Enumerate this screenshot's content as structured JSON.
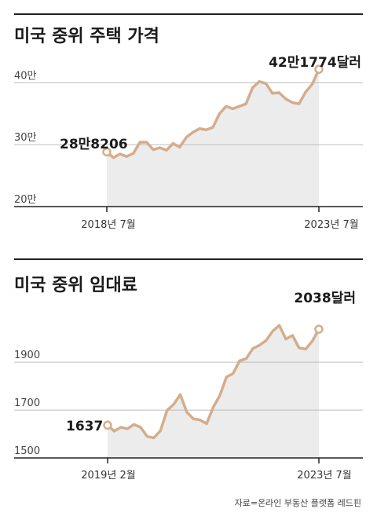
{
  "source": "자료=온라인 부동산 플랫폼 레드핀",
  "colors": {
    "line": "#d4ad8c",
    "area": "#ececec",
    "grid": "#bdbdbd",
    "rule": "#222222",
    "marker_fill": "#ffffff"
  },
  "chart_data": [
    {
      "type": "area",
      "title": "미국 중위 주택 가격",
      "y_tick_labels": [
        "40만",
        "30만",
        "20만"
      ],
      "y_ticks": [
        400000,
        300000,
        200000
      ],
      "ylim": [
        200000,
        450000
      ],
      "x_tick_labels": [
        "2018년 7월",
        "2023년 7월"
      ],
      "start_label": "28만8206",
      "end_label": "42만1774달러",
      "start_value": 288206,
      "end_value": 421774,
      "series": [
        {
          "values": [
            288206,
            279000,
            285000,
            281000,
            286000,
            304000,
            304000,
            292000,
            295000,
            291000,
            302000,
            296000,
            312000,
            320000,
            326000,
            324000,
            328000,
            350000,
            362000,
            358000,
            362000,
            366000,
            392000,
            402000,
            399000,
            383000,
            384000,
            374000,
            368000,
            366000,
            385000,
            398000,
            421774
          ]
        }
      ]
    },
    {
      "type": "area",
      "title": "미국 중위 임대료",
      "y_tick_labels": [
        "1900",
        "1700",
        "1500"
      ],
      "y_ticks": [
        1900,
        1700,
        1500
      ],
      "ylim": [
        1500,
        2150
      ],
      "x_tick_labels": [
        "2019년 2월",
        "2023년 7월"
      ],
      "start_label": "1637",
      "end_label": "2038달러",
      "start_value": 1637,
      "end_value": 2038,
      "series": [
        {
          "values": [
            1637,
            1612,
            1628,
            1622,
            1640,
            1628,
            1590,
            1584,
            1614,
            1699,
            1724,
            1765,
            1691,
            1663,
            1659,
            1643,
            1712,
            1761,
            1838,
            1853,
            1906,
            1915,
            1957,
            1971,
            1991,
            2030,
            2054,
            1997,
            2012,
            1960,
            1955,
            1988,
            2038
          ]
        }
      ]
    }
  ]
}
